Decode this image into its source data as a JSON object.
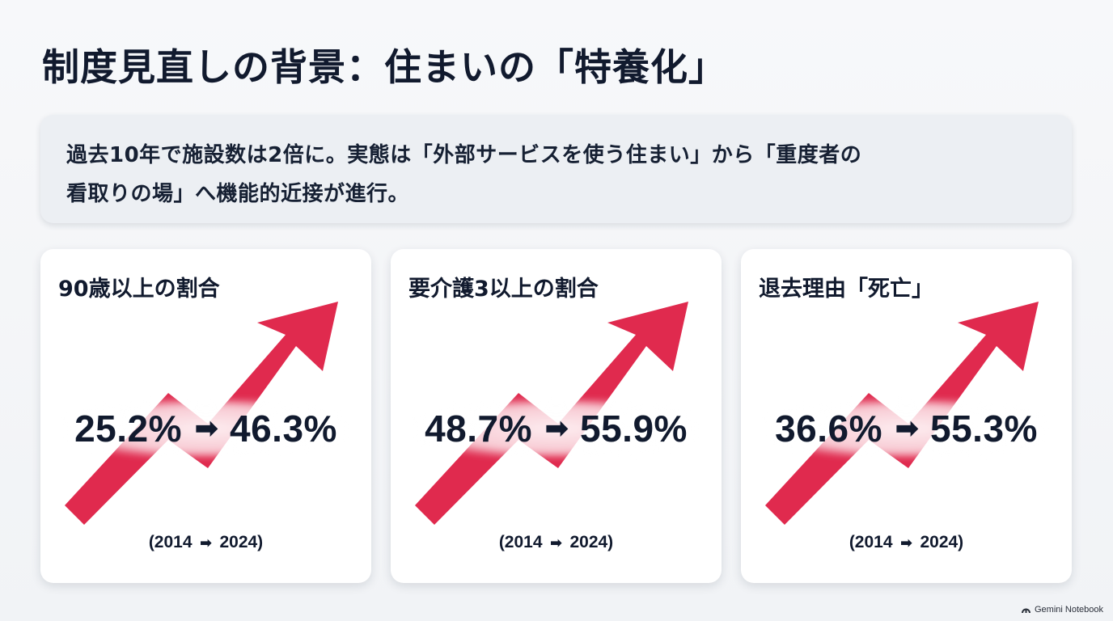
{
  "title": "制度見直しの背景：住まいの「特養化」",
  "summary": {
    "line1": "過去10年で施設数は2倍に。実態は「外部サービスを使う住まい」から「重度者の",
    "line2": "看取りの場」へ機能的近接が進行。"
  },
  "colors": {
    "accent_arrow": "#e02a4e",
    "text": "#111a2e",
    "card_bg": "#ffffff",
    "summary_bg": "#eceff3"
  },
  "cards": [
    {
      "title": "90歳以上の割合",
      "from_value": "25.2%",
      "to_value": "46.3%",
      "arrow_symbol": "➡",
      "year_from": "(2014",
      "year_to": "2024)",
      "trend_icon": "rising-arrow-icon"
    },
    {
      "title": "要介護3以上の割合",
      "from_value": "48.7%",
      "to_value": "55.9%",
      "arrow_symbol": "➡",
      "year_from": "(2014",
      "year_to": "2024)",
      "trend_icon": "rising-arrow-icon"
    },
    {
      "title": "退去理由「死亡」",
      "from_value": "36.6%",
      "to_value": "55.3%",
      "arrow_symbol": "➡",
      "year_from": "(2014",
      "year_to": "2024)",
      "trend_icon": "rising-arrow-icon"
    }
  ],
  "watermark": {
    "text": "Gemini Notebook",
    "icon": "notebook-logo-icon"
  }
}
